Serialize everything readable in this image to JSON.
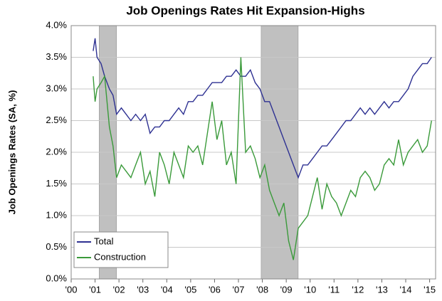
{
  "chart_data": {
    "type": "line",
    "title": "Job Openings Rates Hit Expansion-Highs",
    "y_label": "Job Openings Rates (SA, %)",
    "x": [
      2000.92,
      2001.0,
      2001.08,
      2001.25,
      2001.4,
      2001.6,
      2001.75,
      2001.9,
      2002.1,
      2002.3,
      2002.5,
      2002.7,
      2002.9,
      2003.1,
      2003.3,
      2003.5,
      2003.7,
      2003.9,
      2004.1,
      2004.3,
      2004.5,
      2004.7,
      2004.9,
      2005.1,
      2005.3,
      2005.5,
      2005.7,
      2005.9,
      2006.1,
      2006.3,
      2006.5,
      2006.7,
      2006.9,
      2007.1,
      2007.3,
      2007.5,
      2007.7,
      2007.9,
      2008.1,
      2008.3,
      2008.5,
      2008.7,
      2008.9,
      2009.1,
      2009.3,
      2009.5,
      2009.7,
      2009.9,
      2010.1,
      2010.3,
      2010.5,
      2010.7,
      2010.9,
      2011.1,
      2011.3,
      2011.5,
      2011.7,
      2011.9,
      2012.1,
      2012.3,
      2012.5,
      2012.7,
      2012.9,
      2013.1,
      2013.3,
      2013.5,
      2013.7,
      2013.9,
      2014.1,
      2014.3,
      2014.5,
      2014.7,
      2014.9,
      2015.08
    ],
    "series": [
      {
        "name": "Total",
        "color": "#2e3192",
        "values": [
          3.6,
          3.8,
          3.5,
          3.4,
          3.2,
          3.0,
          2.9,
          2.6,
          2.7,
          2.6,
          2.5,
          2.6,
          2.5,
          2.6,
          2.3,
          2.4,
          2.4,
          2.5,
          2.5,
          2.6,
          2.7,
          2.6,
          2.8,
          2.8,
          2.9,
          2.9,
          3.0,
          3.1,
          3.1,
          3.1,
          3.2,
          3.2,
          3.3,
          3.2,
          3.2,
          3.3,
          3.1,
          3.0,
          2.8,
          2.8,
          2.6,
          2.4,
          2.2,
          2.0,
          1.8,
          1.6,
          1.8,
          1.8,
          1.9,
          2.0,
          2.1,
          2.1,
          2.2,
          2.3,
          2.4,
          2.5,
          2.5,
          2.6,
          2.7,
          2.6,
          2.7,
          2.6,
          2.7,
          2.8,
          2.7,
          2.8,
          2.8,
          2.9,
          3.0,
          3.2,
          3.3,
          3.4,
          3.4,
          3.5
        ]
      },
      {
        "name": "Construction",
        "color": "#3a9a3a",
        "values": [
          3.2,
          2.8,
          3.0,
          3.1,
          3.2,
          2.4,
          2.1,
          1.6,
          1.8,
          1.7,
          1.6,
          1.8,
          2.0,
          1.5,
          1.7,
          1.3,
          2.0,
          1.8,
          1.5,
          2.0,
          1.8,
          1.6,
          2.1,
          2.0,
          2.1,
          1.8,
          2.3,
          2.8,
          2.2,
          2.5,
          1.8,
          2.0,
          1.5,
          3.5,
          2.0,
          2.1,
          1.9,
          1.6,
          1.8,
          1.4,
          1.2,
          1.0,
          1.2,
          0.6,
          0.3,
          0.8,
          0.9,
          1.0,
          1.3,
          1.6,
          1.1,
          1.5,
          1.3,
          1.2,
          1.0,
          1.2,
          1.4,
          1.3,
          1.6,
          1.7,
          1.6,
          1.4,
          1.5,
          1.8,
          1.9,
          1.8,
          2.2,
          1.8,
          2.0,
          2.1,
          2.2,
          2.0,
          2.1,
          2.5
        ]
      }
    ],
    "recessions": [
      [
        2001.17,
        2001.9
      ],
      [
        2007.95,
        2009.5
      ]
    ],
    "recession_color": "#c0c0c0",
    "xlim": [
      2000,
      2015.25
    ],
    "xticks": [
      {
        "value": 2000,
        "label": "'00"
      },
      {
        "value": 2001,
        "label": "'01"
      },
      {
        "value": 2002,
        "label": "'02"
      },
      {
        "value": 2003,
        "label": "'03"
      },
      {
        "value": 2004,
        "label": "'04"
      },
      {
        "value": 2005,
        "label": "'05"
      },
      {
        "value": 2006,
        "label": "'06"
      },
      {
        "value": 2007,
        "label": "'07"
      },
      {
        "value": 2008,
        "label": "'08"
      },
      {
        "value": 2009,
        "label": "'09"
      },
      {
        "value": 2010,
        "label": "'10"
      },
      {
        "value": 2011,
        "label": "'11"
      },
      {
        "value": 2012,
        "label": "'12"
      },
      {
        "value": 2013,
        "label": "'13"
      },
      {
        "value": 2014,
        "label": "'14"
      },
      {
        "value": 2015,
        "label": "'15"
      }
    ],
    "ylim": [
      0,
      4
    ],
    "yticks": [
      {
        "value": 0,
        "label": "0.0%"
      },
      {
        "value": 0.5,
        "label": "0.5%"
      },
      {
        "value": 1,
        "label": "1.0%"
      },
      {
        "value": 1.5,
        "label": "1.5%"
      },
      {
        "value": 2,
        "label": "2.0%"
      },
      {
        "value": 2.5,
        "label": "2.5%"
      },
      {
        "value": 3,
        "label": "3.0%"
      },
      {
        "value": 3.5,
        "label": "3.5%"
      },
      {
        "value": 4,
        "label": "4.0%"
      }
    ],
    "grid": true,
    "legend": "lower-left"
  }
}
